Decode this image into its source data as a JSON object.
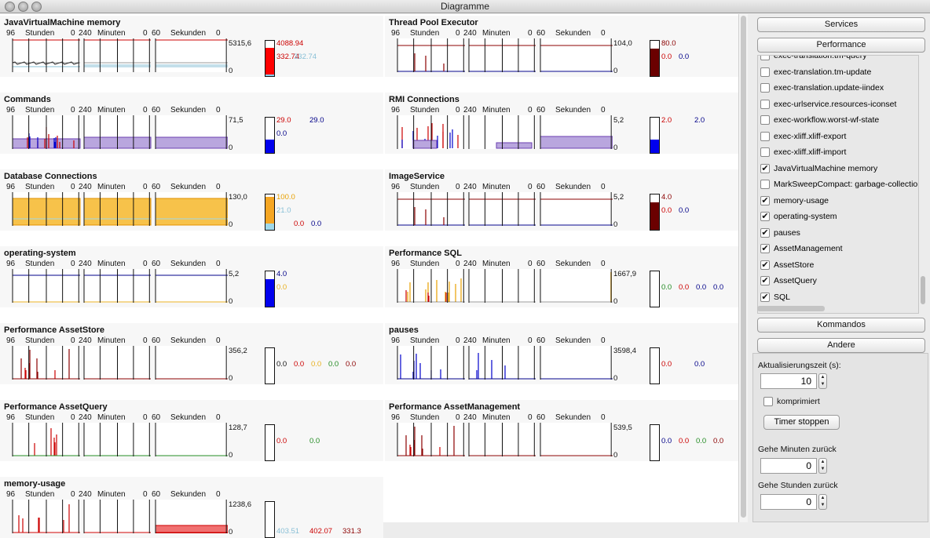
{
  "window": {
    "title": "Diagramme"
  },
  "panels": [
    {
      "title": "JavaVirtualMachine memory",
      "ymax": "5315,6",
      "ymin": "0",
      "style": "mem",
      "gauge": {
        "top": "#ff0000",
        "top_frac": 0.77,
        "bot": "#87ceeb",
        "bot_frac": 0.04
      },
      "values": [
        {
          "text": "4088.94",
          "color": "#cc0000",
          "row": 0,
          "col": 0
        },
        {
          "text": "332.74",
          "color": "#cc0000",
          "row": 1,
          "col": 0
        },
        {
          "text": "332.74",
          "color": "#87bfd6",
          "row": 1,
          "col": 1
        }
      ]
    },
    {
      "title": "Thread Pool Executor",
      "ymax": "104,0",
      "ymin": "0",
      "style": "flat",
      "gauge": {
        "top": "#6b0000",
        "top_frac": 0.77,
        "bot": "#000080",
        "bot_frac": 0
      },
      "values": [
        {
          "text": "80.0",
          "color": "#8b0000",
          "row": 0,
          "col": 0
        },
        {
          "text": "0.0",
          "color": "#cc0000",
          "row": 1,
          "col": 0
        },
        {
          "text": "0.0",
          "color": "#000088",
          "row": 1,
          "col": 1
        }
      ]
    },
    {
      "title": "Commands",
      "ymax": "71,5",
      "ymin": "0",
      "style": "purple",
      "gauge": {
        "top": "#ffffff",
        "top_frac": 0,
        "bot": "#0000ee",
        "bot_frac": 0.38
      },
      "values": [
        {
          "text": "29.0",
          "color": "#cc0000",
          "row": 0,
          "col": 0
        },
        {
          "text": "29.0",
          "color": "#000088",
          "row": 0,
          "col": 1
        },
        {
          "text": "0.0",
          "color": "#000088",
          "row": 1,
          "col": 0
        }
      ]
    },
    {
      "title": "RMI Connections",
      "ymax": "5,2",
      "ymin": "0",
      "style": "purple2",
      "gauge": {
        "top": "#ffffff",
        "top_frac": 0,
        "bot": "#0000ee",
        "bot_frac": 0.38
      },
      "values": [
        {
          "text": "2.0",
          "color": "#cc0000",
          "row": 0,
          "col": 0
        },
        {
          "text": "2.0",
          "color": "#000088",
          "row": 0,
          "col": 1
        }
      ]
    },
    {
      "title": "Database Connections",
      "ymax": "130,0",
      "ymin": "0",
      "style": "orange",
      "gauge": {
        "top": "#f5a623",
        "top_frac": 0.77,
        "bot": "#9fd8ea",
        "bot_frac": 0.17
      },
      "values": [
        {
          "text": "100.0",
          "color": "#e8a000",
          "row": 0,
          "col": 0
        },
        {
          "text": "21.0",
          "color": "#87bfd6",
          "row": 1,
          "col": 0
        },
        {
          "text": "0.0",
          "color": "#cc0000",
          "row": 2,
          "col": 1
        },
        {
          "text": "0.0",
          "color": "#000088",
          "row": 2,
          "col": 2
        }
      ]
    },
    {
      "title": "ImageService",
      "ymax": "5,2",
      "ymin": "0",
      "style": "flat",
      "gauge": {
        "top": "#6b0000",
        "top_frac": 0.77,
        "bot": "#000080",
        "bot_frac": 0
      },
      "values": [
        {
          "text": "4.0",
          "color": "#8b0000",
          "row": 0,
          "col": 0
        },
        {
          "text": "0.0",
          "color": "#cc0000",
          "row": 1,
          "col": 0
        },
        {
          "text": "0.0",
          "color": "#000088",
          "row": 1,
          "col": 1
        }
      ]
    },
    {
      "title": "operating-system",
      "ymax": "5,2",
      "ymin": "0",
      "style": "os",
      "gauge": {
        "top": "#ffffff",
        "top_frac": 0,
        "bot": "#0000ee",
        "bot_frac": 0.77
      },
      "values": [
        {
          "text": "4.0",
          "color": "#000088",
          "row": 0,
          "col": 0
        },
        {
          "text": "0.0",
          "color": "#e8b020",
          "row": 1,
          "col": 0
        }
      ]
    },
    {
      "title": "Performance SQL",
      "ymax": "1667,9",
      "ymin": "0",
      "style": "sql",
      "gauge": {
        "top": "#ffffff",
        "top_frac": 0,
        "bot": "#ffffff",
        "bot_frac": 0
      },
      "values": [
        {
          "text": "0.0",
          "color": "#228b22",
          "row": 1,
          "col": 0
        },
        {
          "text": "0.0",
          "color": "#cc0000",
          "row": 1,
          "col": 1
        },
        {
          "text": "0.0",
          "color": "#000088",
          "row": 1,
          "col": 2
        },
        {
          "text": "0.0",
          "color": "#000088",
          "row": 1,
          "col": 3
        }
      ]
    },
    {
      "title": "Performance AssetStore",
      "ymax": "356,2",
      "ymin": "0",
      "style": "spikes",
      "gauge": {
        "top": "#ffffff",
        "top_frac": 0,
        "bot": "#ffffff",
        "bot_frac": 0
      },
      "values": [
        {
          "text": "0.0",
          "color": "#111111",
          "row": 1,
          "col": 0
        },
        {
          "text": "0.0",
          "color": "#cc0000",
          "row": 1,
          "col": 1
        },
        {
          "text": "0.0",
          "color": "#e8b020",
          "row": 1,
          "col": 2
        },
        {
          "text": "0.0",
          "color": "#228b22",
          "row": 1,
          "col": 3
        },
        {
          "text": "0.0",
          "color": "#8b0000",
          "row": 1,
          "col": 4
        }
      ]
    },
    {
      "title": "pauses",
      "ymax": "3598,4",
      "ymin": "0",
      "style": "pauses",
      "gauge": {
        "top": "#ffffff",
        "top_frac": 0,
        "bot": "#ffffff",
        "bot_frac": 0
      },
      "values": [
        {
          "text": "0.0",
          "color": "#cc0000",
          "row": 1,
          "col": 0
        },
        {
          "text": "0.0",
          "color": "#000088",
          "row": 1,
          "col": 1
        }
      ]
    },
    {
      "title": "Performance AssetQuery",
      "ymax": "128,7",
      "ymin": "0",
      "style": "query",
      "gauge": {
        "top": "#ffffff",
        "top_frac": 0,
        "bot": "#ffffff",
        "bot_frac": 0
      },
      "values": [
        {
          "text": "0.0",
          "color": "#cc0000",
          "row": 1,
          "col": 0
        },
        {
          "text": "0.0",
          "color": "#228b22",
          "row": 1,
          "col": 1
        }
      ]
    },
    {
      "title": "Performance AssetManagement",
      "ymax": "539,5",
      "ymin": "0",
      "style": "spikes",
      "gauge": {
        "top": "#ffffff",
        "top_frac": 0,
        "bot": "#ffffff",
        "bot_frac": 0
      },
      "values": [
        {
          "text": "0.0",
          "color": "#000088",
          "row": 1,
          "col": 0
        },
        {
          "text": "0.0",
          "color": "#cc0000",
          "row": 1,
          "col": 1
        },
        {
          "text": "0.0",
          "color": "#228b22",
          "row": 1,
          "col": 2
        },
        {
          "text": "0.0",
          "color": "#8b0000",
          "row": 1,
          "col": 3
        }
      ]
    },
    {
      "title": "memory-usage",
      "ymax": "1238,6",
      "ymin": "0",
      "style": "memusage",
      "gauge": {
        "top": "#ffffff",
        "top_frac": 0,
        "bot": "#ffffff",
        "bot_frac": 0
      },
      "values": [
        {
          "text": "403.51",
          "color": "#87bfd6",
          "row": 2,
          "col": 0
        },
        {
          "text": "402.07",
          "color": "#cc0000",
          "row": 2,
          "col": 1
        },
        {
          "text": "331.3",
          "color": "#8b0000",
          "row": 2,
          "col": 2
        }
      ]
    }
  ],
  "header": {
    "h96": "96",
    "hours": "Stunden",
    "h0": "0",
    "m240": "240",
    "minutes": "Minuten",
    "m0": "0",
    "s60": "60",
    "seconds": "Sekunden",
    "s0": "0"
  },
  "sidebar": {
    "services_label": "Services",
    "performance_label": "Performance",
    "items": [
      {
        "label": "exec-translation.tm-query",
        "checked": false
      },
      {
        "label": "exec-translation.tm-update",
        "checked": false
      },
      {
        "label": "exec-translation.update-iindex",
        "checked": false
      },
      {
        "label": "exec-urlservice.resources-iconset",
        "checked": false
      },
      {
        "label": "exec-workflow.worst-wf-state",
        "checked": false
      },
      {
        "label": "exec-xliff.xliff-export",
        "checked": false
      },
      {
        "label": "exec-xliff.xliff-import",
        "checked": false
      },
      {
        "label": "JavaVirtualMachine memory",
        "checked": true
      },
      {
        "label": "MarkSweepCompact: garbage-collection",
        "checked": false
      },
      {
        "label": "memory-usage",
        "checked": true
      },
      {
        "label": "operating-system",
        "checked": true
      },
      {
        "label": "pauses",
        "checked": true
      },
      {
        "label": "AssetManagement",
        "checked": true
      },
      {
        "label": "AssetStore",
        "checked": true
      },
      {
        "label": "AssetQuery",
        "checked": true
      },
      {
        "label": "SQL",
        "checked": true
      }
    ],
    "kommandos_label": "Kommandos",
    "andere_label": "Andere",
    "refresh_label": "Aktualisierungszeit (s):",
    "refresh_value": "10",
    "compressed_label": "komprimiert",
    "timer_label": "Timer stoppen",
    "back_minutes_label": "Gehe Minuten zurück",
    "back_minutes_value": "0",
    "back_hours_label": "Gehe Stunden zurück",
    "back_hours_value": "0"
  }
}
